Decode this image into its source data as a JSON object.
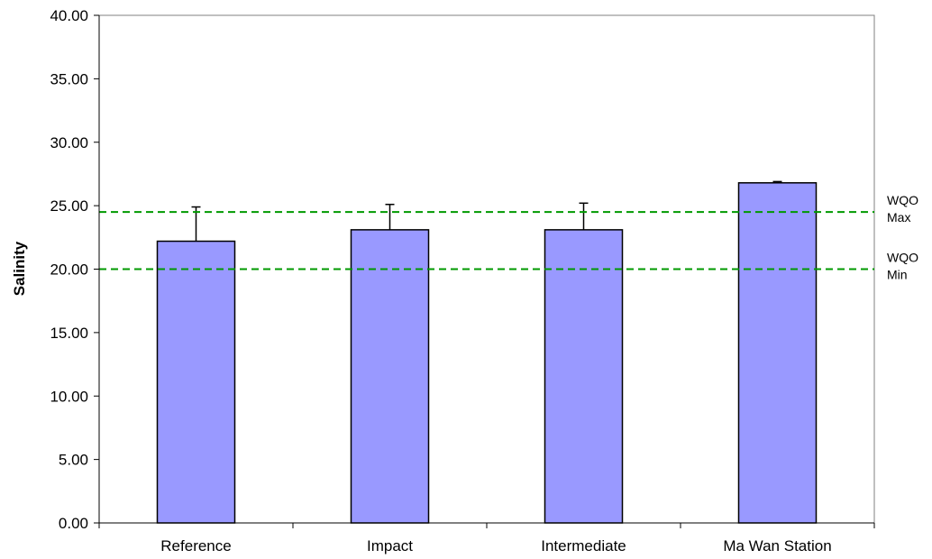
{
  "chart_data": {
    "type": "bar",
    "title": "",
    "xlabel": "",
    "ylabel": "Salinity",
    "ylim": [
      0,
      40
    ],
    "yticks": [
      "0.00",
      "5.00",
      "10.00",
      "15.00",
      "20.00",
      "25.00",
      "30.00",
      "35.00",
      "40.00"
    ],
    "categories": [
      "Reference",
      "Impact",
      "Intermediate",
      "Ma Wan Station"
    ],
    "values": [
      22.2,
      23.1,
      23.1,
      26.8
    ],
    "error_plus": [
      2.7,
      2.0,
      2.1,
      0.1
    ],
    "grid": false,
    "bar_color": "#9999ff",
    "reference_lines": [
      {
        "label_top": "WQO",
        "label_bottom": "Max",
        "value": 24.5,
        "color": "#009900"
      },
      {
        "label_top": "WQO",
        "label_bottom": "Min",
        "value": 20.0,
        "color": "#009900"
      }
    ]
  }
}
